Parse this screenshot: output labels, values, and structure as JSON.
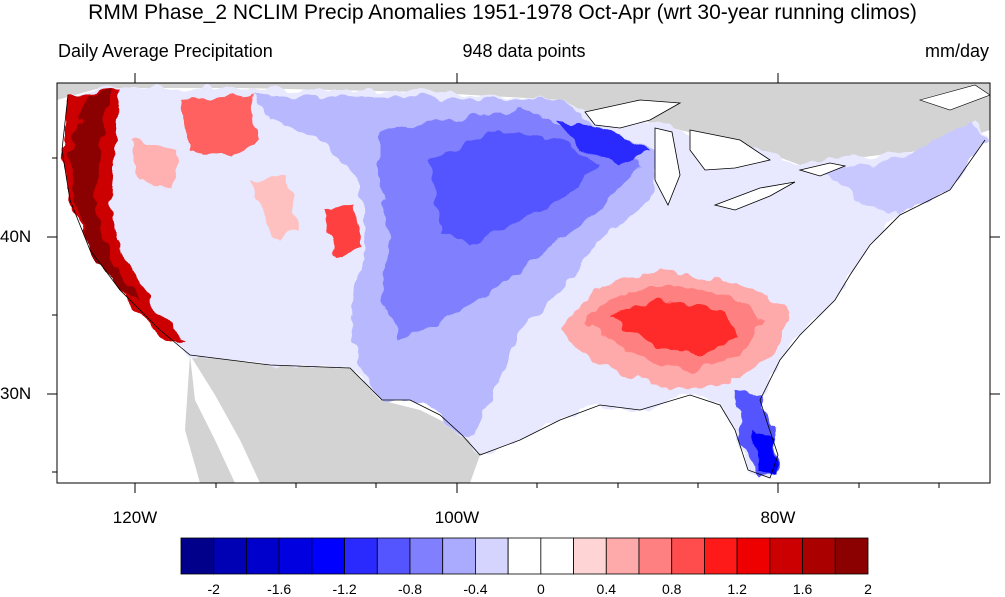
{
  "header": {
    "title": "RMM Phase_2 NCLIM Precip Anomalies 1951-1978 Oct-Apr (wrt 30-year running climos)",
    "left": "Daily Average Precipitation",
    "center": "948 data points",
    "right": "mm/day"
  },
  "axes": {
    "y_ticks": [
      "40N",
      "30N"
    ],
    "x_ticks": [
      "120W",
      "100W",
      "80W"
    ]
  },
  "colorbar": {
    "colors": [
      "#00008b",
      "#0000b4",
      "#0000cd",
      "#0000e1",
      "#0000ff",
      "#2a2aff",
      "#5555ff",
      "#8080ff",
      "#aaaaff",
      "#d4d4ff",
      "#ffffff",
      "#ffffff",
      "#ffd4d4",
      "#ffaaaa",
      "#ff8080",
      "#ff4c4c",
      "#ff1a1a",
      "#ee0000",
      "#cc0000",
      "#aa0000",
      "#8b0000"
    ],
    "labels": [
      "-2",
      "-1.6",
      "-1.2",
      "-0.8",
      "-0.4",
      "0",
      "0.4",
      "0.8",
      "1.2",
      "1.6",
      "2"
    ]
  }
}
